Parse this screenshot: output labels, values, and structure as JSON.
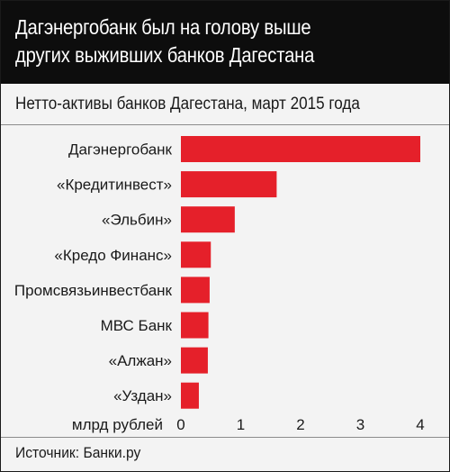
{
  "header": {
    "title_line1": "Дагэнергобанк был на голову выше",
    "title_line2": "других выживших банков Дагестана"
  },
  "subtitle": "Нетто-активы банков Дагестана, март 2015 года",
  "source": "Источник: Банки.ру",
  "colors": {
    "bar": "#e5202a",
    "header_bg": "#0d0d0d",
    "panel_bg": "#f3f3f3"
  },
  "chart_data": {
    "type": "bar",
    "orientation": "horizontal",
    "categories": [
      "Дагэнергобанк",
      "«Кредитинвест»",
      "«Эльбин»",
      "«Кредо Финанс»",
      "Промсвязьинвестбанк",
      "МВС Банк",
      "«Алжан»",
      "«Уздан»"
    ],
    "values": [
      4.0,
      1.6,
      0.9,
      0.5,
      0.48,
      0.46,
      0.45,
      0.3
    ],
    "x_unit_label": "млрд рублей",
    "xticks": [
      "0",
      "1",
      "2",
      "3",
      "4"
    ],
    "xlim": [
      0,
      4
    ],
    "grid": false
  }
}
